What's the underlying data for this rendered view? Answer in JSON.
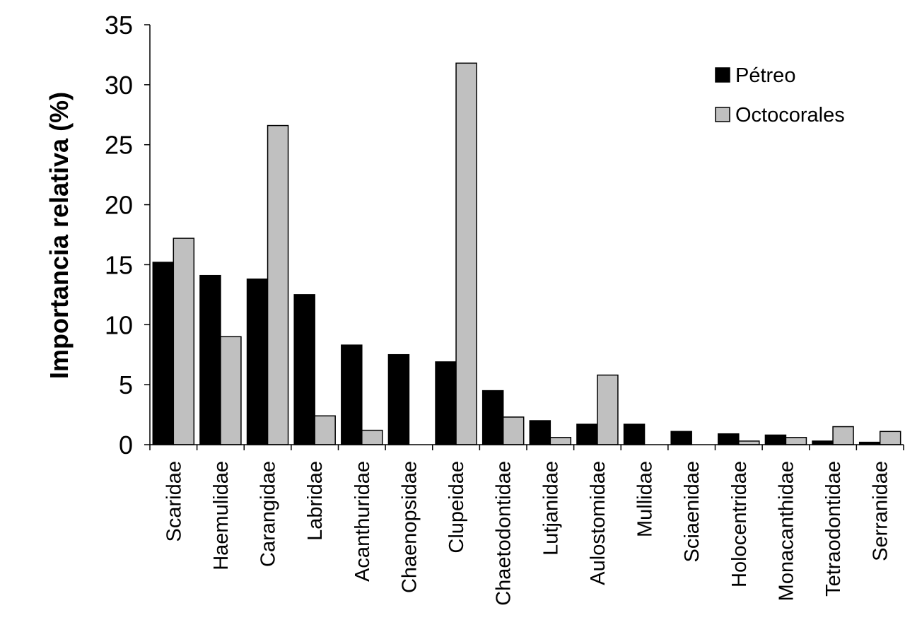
{
  "chart_data": {
    "type": "bar",
    "title": "",
    "xlabel": "",
    "ylabel": "Importancia relativa (%)",
    "ylim": [
      0,
      35
    ],
    "yticks": [
      "0",
      "5",
      "10",
      "15",
      "20",
      "25",
      "30",
      "35"
    ],
    "grid": false,
    "legend_position": "top-right",
    "categories": [
      "Scaridae",
      "Haemulidae",
      "Carangidae",
      "Labridae",
      "Acanthuridae",
      "Chaenopsidae",
      "Clupeidae",
      "Chaetodontidae",
      "Lutjanidae",
      "Aulostomidae",
      "Mullidae",
      "Sciaenidae",
      "Holocentridae",
      "Monacanthidae",
      "Tetraodontidae",
      "Serranidae"
    ],
    "series": [
      {
        "name": "Pétreo",
        "color": "#000000",
        "values": [
          15.2,
          14.1,
          13.8,
          12.5,
          8.3,
          7.5,
          6.9,
          4.5,
          2.0,
          1.7,
          1.7,
          1.1,
          0.9,
          0.8,
          0.3,
          0.2
        ]
      },
      {
        "name": "Octocorales",
        "color": "#c0c0c0",
        "values": [
          17.2,
          9.0,
          26.6,
          2.4,
          1.2,
          0,
          31.8,
          2.3,
          0.6,
          5.8,
          0,
          0,
          0.3,
          0.6,
          1.5,
          1.1
        ]
      }
    ]
  }
}
